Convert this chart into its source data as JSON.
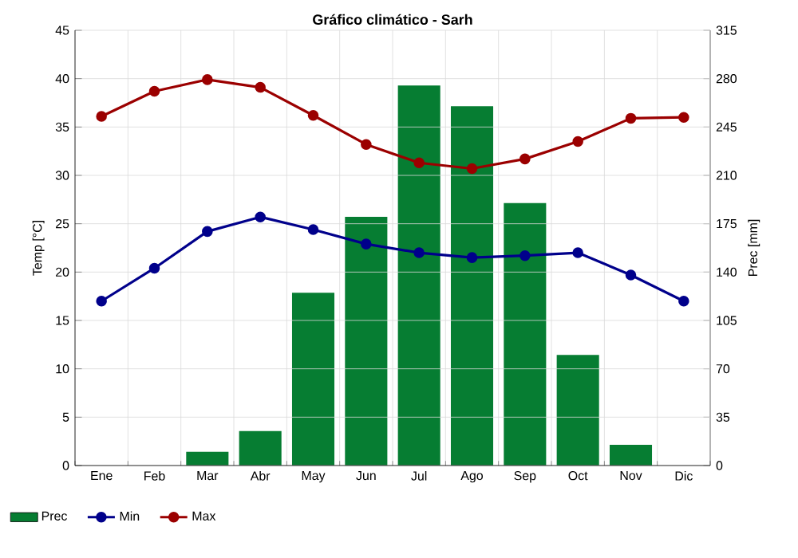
{
  "chart_data": {
    "type": "line",
    "title": "Gráfico climático - Sarh",
    "ylabel": "Temp [°C]",
    "y2label": "Prec [mm]",
    "categories": [
      "Ene",
      "Feb",
      "Mar",
      "Abr",
      "May",
      "Jun",
      "Jul",
      "Ago",
      "Sep",
      "Oct",
      "Nov",
      "Dic"
    ],
    "series": [
      {
        "name": "Prec",
        "type": "bar",
        "axis": "y2",
        "color": "#067d32",
        "values": [
          0,
          0,
          10,
          25,
          125,
          180,
          275,
          260,
          190,
          80,
          15,
          0
        ]
      },
      {
        "name": "Min",
        "color": "#00008b",
        "values": [
          17.0,
          20.4,
          24.2,
          25.7,
          24.4,
          22.9,
          22.0,
          21.5,
          21.7,
          22.0,
          19.7,
          17.0
        ]
      },
      {
        "name": "Max",
        "color": "#9b0000",
        "values": [
          36.1,
          38.7,
          39.9,
          39.1,
          36.2,
          33.2,
          31.3,
          30.7,
          31.7,
          33.5,
          35.9,
          36.0
        ]
      }
    ],
    "ylim": [
      0,
      45
    ],
    "yticks": [
      0,
      5,
      10,
      15,
      20,
      25,
      30,
      35,
      40,
      45
    ],
    "y2lim": [
      0,
      315
    ],
    "y2ticks": [
      0,
      35,
      70,
      105,
      140,
      175,
      210,
      245,
      280,
      315
    ],
    "grid": true,
    "legend": "bottom left",
    "marker": "circle",
    "line_style": "solid"
  }
}
